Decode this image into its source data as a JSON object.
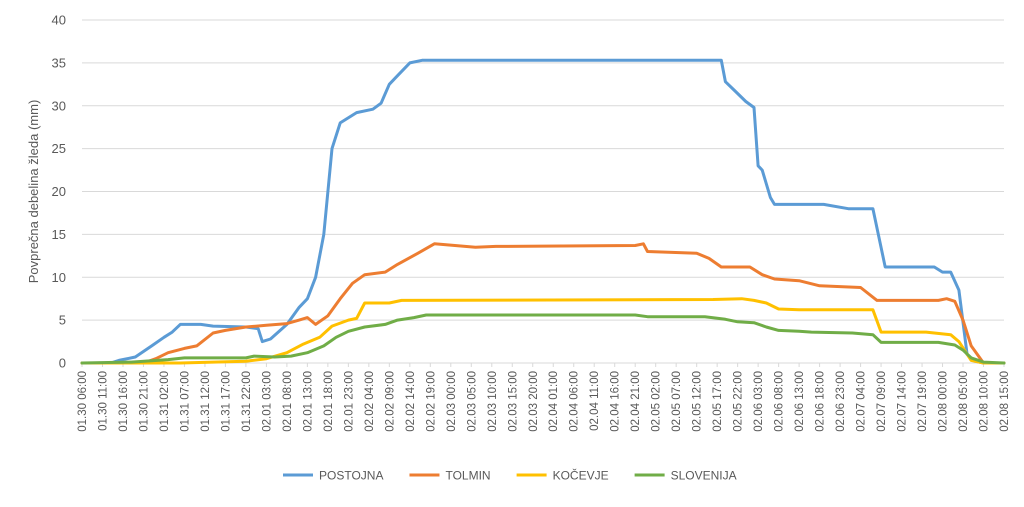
{
  "chart_data": {
    "type": "line",
    "title": "",
    "xlabel": "",
    "ylabel": "Povprečna debelina žleda (mm)",
    "ylim": [
      0,
      40
    ],
    "yticks": [
      0,
      5,
      10,
      15,
      20,
      25,
      30,
      35,
      40
    ],
    "grid": "horizontal",
    "legend_position": "bottom",
    "x_step_hours": 1,
    "x_start": "01.30 06:00",
    "x_end": "02.08 15:00",
    "x_tick_labels": [
      "01.30 06:00",
      "01.30 11:00",
      "01.30 16:00",
      "01.30 21:00",
      "01.31 02:00",
      "01.31 07:00",
      "01.31 12:00",
      "01.31 17:00",
      "01.31 22:00",
      "02.01 03:00",
      "02.01 08:00",
      "02.01 13:00",
      "02.01 18:00",
      "02.01 23:00",
      "02.02 04:00",
      "02.02 09:00",
      "02.02 14:00",
      "02.02 19:00",
      "02.03 00:00",
      "02.03 05:00",
      "02.03 10:00",
      "02.03 15:00",
      "02.03 20:00",
      "02.04 01:00",
      "02.04 06:00",
      "02.04 11:00",
      "02.04 16:00",
      "02.04 21:00",
      "02.05 02:00",
      "02.05 07:00",
      "02.05 12:00",
      "02.05 17:00",
      "02.05 22:00",
      "02.06 03:00",
      "02.06 08:00",
      "02.06 13:00",
      "02.06 18:00",
      "02.06 23:00",
      "02.07 04:00",
      "02.07 09:00",
      "02.07 14:00",
      "02.07 19:00",
      "02.08 00:00",
      "02.08 05:00",
      "02.08 10:00",
      "02.08 15:00"
    ],
    "series": [
      {
        "name": "POSTOJNA",
        "color": "#5b9bd5",
        "points": [
          [
            "01.30 06:00",
            0
          ],
          [
            "01.30 13:00",
            0
          ],
          [
            "01.30 15:00",
            0.3
          ],
          [
            "01.30 19:00",
            0.7
          ],
          [
            "01.30 23:00",
            2
          ],
          [
            "01.31 02:00",
            3
          ],
          [
            "01.31 04:00",
            3.6
          ],
          [
            "01.31 06:00",
            4.5
          ],
          [
            "01.31 11:00",
            4.5
          ],
          [
            "01.31 14:00",
            4.3
          ],
          [
            "01.31 22:00",
            4.2
          ],
          [
            "02.01 01:00",
            4.0
          ],
          [
            "02.01 02:00",
            2.5
          ],
          [
            "02.01 04:00",
            2.8
          ],
          [
            "02.01 08:00",
            4.5
          ],
          [
            "02.01 11:00",
            6.5
          ],
          [
            "02.01 13:00",
            7.5
          ],
          [
            "02.01 15:00",
            10
          ],
          [
            "02.01 17:00",
            15
          ],
          [
            "02.01 19:00",
            25
          ],
          [
            "02.01 21:00",
            28
          ],
          [
            "02.02 01:00",
            29.2
          ],
          [
            "02.02 05:00",
            29.6
          ],
          [
            "02.02 07:00",
            30.3
          ],
          [
            "02.02 09:00",
            32.5
          ],
          [
            "02.02 11:00",
            33.5
          ],
          [
            "02.02 14:00",
            35
          ],
          [
            "02.02 17:00",
            35.3
          ],
          [
            "02.05 18:00",
            35.3
          ],
          [
            "02.05 19:00",
            32.8
          ],
          [
            "02.05 21:00",
            31.9
          ],
          [
            "02.06 00:00",
            30.5
          ],
          [
            "02.06 02:00",
            29.8
          ],
          [
            "02.06 03:00",
            23
          ],
          [
            "02.06 04:00",
            22.5
          ],
          [
            "02.06 06:00",
            19.3
          ],
          [
            "02.06 07:00",
            18.5
          ],
          [
            "02.06 19:00",
            18.5
          ],
          [
            "02.07 01:00",
            18
          ],
          [
            "02.07 07:00",
            18
          ],
          [
            "02.07 10:00",
            11.2
          ],
          [
            "02.07 22:00",
            11.2
          ],
          [
            "02.08 00:00",
            10.6
          ],
          [
            "02.08 02:00",
            10.6
          ],
          [
            "02.08 04:00",
            8.5
          ],
          [
            "02.08 06:00",
            1
          ],
          [
            "02.08 08:00",
            0.2
          ],
          [
            "02.08 10:00",
            0
          ],
          [
            "02.08 15:00",
            0
          ]
        ]
      },
      {
        "name": "TOLMIN",
        "color": "#ed7d31",
        "points": [
          [
            "01.30 06:00",
            0
          ],
          [
            "01.30 21:00",
            0
          ],
          [
            "01.31 00:00",
            0.5
          ],
          [
            "01.31 03:00",
            1.2
          ],
          [
            "01.31 07:00",
            1.7
          ],
          [
            "01.31 10:00",
            2
          ],
          [
            "01.31 14:00",
            3.5
          ],
          [
            "01.31 17:00",
            3.8
          ],
          [
            "01.31 22:00",
            4.2
          ],
          [
            "02.01 03:00",
            4.4
          ],
          [
            "02.01 08:00",
            4.6
          ],
          [
            "02.01 11:00",
            5
          ],
          [
            "02.01 13:00",
            5.3
          ],
          [
            "02.01 15:00",
            4.5
          ],
          [
            "02.01 18:00",
            5.5
          ],
          [
            "02.01 21:00",
            7.5
          ],
          [
            "02.02 00:00",
            9.3
          ],
          [
            "02.02 03:00",
            10.3
          ],
          [
            "02.02 08:00",
            10.6
          ],
          [
            "02.02 11:00",
            11.5
          ],
          [
            "02.02 16:00",
            12.8
          ],
          [
            "02.02 20:00",
            13.9
          ],
          [
            "02.03 01:00",
            13.7
          ],
          [
            "02.03 06:00",
            13.5
          ],
          [
            "02.03 11:00",
            13.6
          ],
          [
            "02.04 21:00",
            13.7
          ],
          [
            "02.04 23:00",
            13.9
          ],
          [
            "02.05 00:00",
            13
          ],
          [
            "02.05 12:00",
            12.8
          ],
          [
            "02.05 15:00",
            12.2
          ],
          [
            "02.05 18:00",
            11.2
          ],
          [
            "02.06 01:00",
            11.2
          ],
          [
            "02.06 04:00",
            10.3
          ],
          [
            "02.06 07:00",
            9.8
          ],
          [
            "02.06 13:00",
            9.6
          ],
          [
            "02.06 18:00",
            9
          ],
          [
            "02.07 04:00",
            8.8
          ],
          [
            "02.07 08:00",
            7.3
          ],
          [
            "02.07 23:00",
            7.3
          ],
          [
            "02.08 01:00",
            7.5
          ],
          [
            "02.08 03:00",
            7.2
          ],
          [
            "02.08 05:00",
            5
          ],
          [
            "02.08 07:00",
            2
          ],
          [
            "02.08 10:00",
            0
          ],
          [
            "02.08 15:00",
            0
          ]
        ]
      },
      {
        "name": "KOČEVJE",
        "color": "#ffc000",
        "points": [
          [
            "01.30 06:00",
            0
          ],
          [
            "01.31 06:00",
            0
          ],
          [
            "01.31 22:00",
            0.2
          ],
          [
            "02.01 03:00",
            0.5
          ],
          [
            "02.01 08:00",
            1.2
          ],
          [
            "02.01 12:00",
            2.2
          ],
          [
            "02.01 16:00",
            3
          ],
          [
            "02.01 19:00",
            4.3
          ],
          [
            "02.01 23:00",
            5
          ],
          [
            "02.02 01:00",
            5.2
          ],
          [
            "02.02 03:00",
            7
          ],
          [
            "02.02 09:00",
            7
          ],
          [
            "02.02 12:00",
            7.3
          ],
          [
            "02.05 16:00",
            7.4
          ],
          [
            "02.05 23:00",
            7.5
          ],
          [
            "02.06 02:00",
            7.3
          ],
          [
            "02.06 05:00",
            7
          ],
          [
            "02.06 08:00",
            6.3
          ],
          [
            "02.06 13:00",
            6.2
          ],
          [
            "02.07 07:00",
            6.2
          ],
          [
            "02.07 09:00",
            3.6
          ],
          [
            "02.07 20:00",
            3.6
          ],
          [
            "02.08 02:00",
            3.3
          ],
          [
            "02.08 04:00",
            2.5
          ],
          [
            "02.08 07:00",
            0.3
          ],
          [
            "02.08 10:00",
            0
          ],
          [
            "02.08 15:00",
            0
          ]
        ]
      },
      {
        "name": "SLOVENIJA",
        "color": "#70ad47",
        "points": [
          [
            "01.30 06:00",
            0
          ],
          [
            "01.30 18:00",
            0.1
          ],
          [
            "01.31 03:00",
            0.4
          ],
          [
            "01.31 07:00",
            0.6
          ],
          [
            "01.31 22:00",
            0.6
          ],
          [
            "02.01 00:00",
            0.8
          ],
          [
            "02.01 05:00",
            0.7
          ],
          [
            "02.01 09:00",
            0.8
          ],
          [
            "02.01 13:00",
            1.2
          ],
          [
            "02.01 17:00",
            2
          ],
          [
            "02.01 20:00",
            3
          ],
          [
            "02.01 23:00",
            3.7
          ],
          [
            "02.02 03:00",
            4.2
          ],
          [
            "02.02 08:00",
            4.5
          ],
          [
            "02.02 11:00",
            5
          ],
          [
            "02.02 15:00",
            5.3
          ],
          [
            "02.02 18:00",
            5.6
          ],
          [
            "02.04 21:00",
            5.6
          ],
          [
            "02.05 00:00",
            5.4
          ],
          [
            "02.05 14:00",
            5.4
          ],
          [
            "02.05 19:00",
            5.1
          ],
          [
            "02.05 22:00",
            4.8
          ],
          [
            "02.06 02:00",
            4.7
          ],
          [
            "02.06 05:00",
            4.2
          ],
          [
            "02.06 08:00",
            3.8
          ],
          [
            "02.06 13:00",
            3.7
          ],
          [
            "02.06 16:00",
            3.6
          ],
          [
            "02.07 02:00",
            3.5
          ],
          [
            "02.07 07:00",
            3.3
          ],
          [
            "02.07 09:00",
            2.4
          ],
          [
            "02.07 23:00",
            2.4
          ],
          [
            "02.08 03:00",
            2.1
          ],
          [
            "02.08 05:00",
            1.5
          ],
          [
            "02.08 07:00",
            0.6
          ],
          [
            "02.08 10:00",
            0.1
          ],
          [
            "02.08 15:00",
            0
          ]
        ]
      }
    ]
  }
}
